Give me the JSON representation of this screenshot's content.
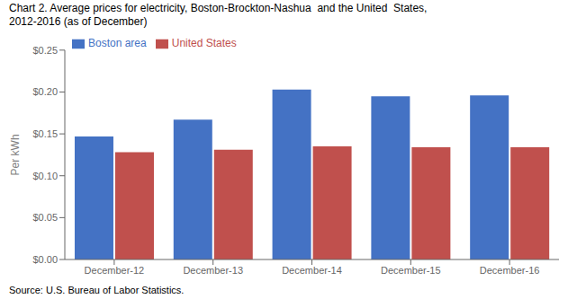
{
  "chart_data": {
    "type": "bar",
    "title": "Chart 2. Average prices for electricity, Boston-Brockton-Nashua  and the United  States,\n2012-2016 (as of December)",
    "ylabel": "Per kWh",
    "source": "Source: U.S. Bureau of Labor Statistics.",
    "categories": [
      "December-12",
      "December-13",
      "December-14",
      "December-15",
      "December-16"
    ],
    "series": [
      {
        "name": "Boston area",
        "color": "#4472C4",
        "values": [
          0.147,
          0.167,
          0.203,
          0.195,
          0.196
        ]
      },
      {
        "name": "United States",
        "color": "#C0504D",
        "values": [
          0.128,
          0.131,
          0.135,
          0.134,
          0.134
        ]
      }
    ],
    "ylim": [
      0,
      0.25
    ],
    "yticks": [
      {
        "value": 0,
        "label": "$0.00"
      },
      {
        "value": 0.05,
        "label": "$0.05"
      },
      {
        "value": 0.1,
        "label": "$0.10"
      },
      {
        "value": 0.15,
        "label": "$0.15"
      },
      {
        "value": 0.2,
        "label": "$0.20"
      },
      {
        "value": 0.25,
        "label": "$0.25"
      }
    ],
    "grid": false,
    "legend": "upper left"
  }
}
